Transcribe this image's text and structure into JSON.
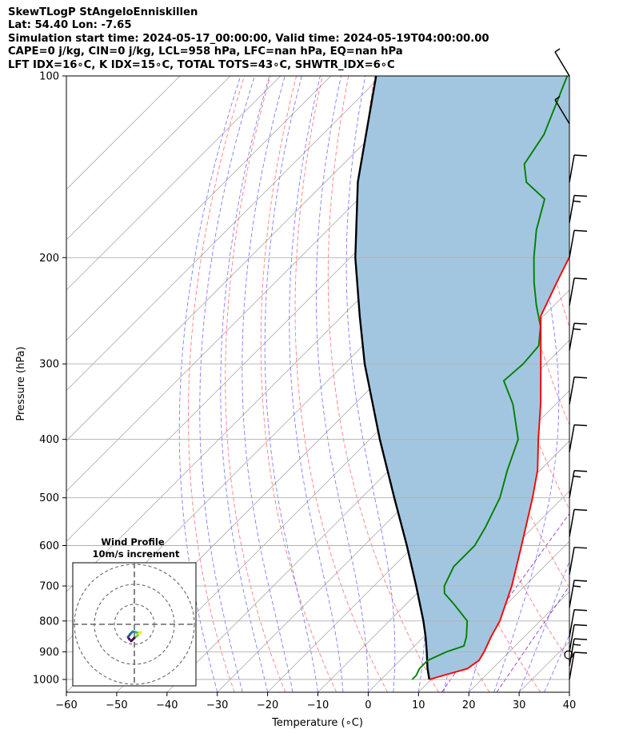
{
  "header": {
    "line1": "SkewTLogP StAngeloEnniskillen",
    "line2": "Lat: 54.40   Lon: -7.65",
    "line3": "Simulation start time: 2024-05-17_00:00:00, Valid time: 2024-05-19T04:00:00.00",
    "line4": "CAPE=0 j/kg, CIN=0 j/kg, LCL=958 hPa, LFC=nan hPa, EQ=nan hPa",
    "line5": "LFT IDX=16∘C, K IDX=15∘C, TOTAL TOTS=43∘C, SHWTR_IDX=6∘C"
  },
  "colors": {
    "temperature": "#ff0000",
    "dewpoint": "#008000",
    "parcel": "#000000",
    "cape_fill": "#a2c6e0",
    "dry_adiabat": "#ff6666",
    "moist_adiabat": "#6666ff",
    "mixing_ratio": "#9933cc",
    "isotherm": "#aaaaaa"
  },
  "chart_data": {
    "type": "line",
    "xlabel": "Temperature (∘C)",
    "ylabel": "Pressure (hPa)",
    "xlim": [
      -60,
      40
    ],
    "ylim": [
      1050,
      100
    ],
    "y_scale": "log",
    "x_ticks": [
      -60,
      -50,
      -40,
      -30,
      -20,
      -10,
      0,
      10,
      20,
      30,
      40
    ],
    "y_ticks": [
      1000,
      900,
      800,
      700,
      600,
      500,
      400,
      300,
      200,
      100
    ],
    "grid": true,
    "series": [
      {
        "key": "temperature",
        "pressure": [
          1000,
          985,
          960,
          930,
          900,
          850,
          800,
          700,
          600,
          500,
          450,
          400,
          350,
          300,
          250,
          220,
          200,
          180,
          160,
          145,
          130,
          115,
          100
        ],
        "temp": [
          9.6,
          11.6,
          15.0,
          15.7,
          15.0,
          13.4,
          12.0,
          7.4,
          1.3,
          -6.0,
          -10.5,
          -16.5,
          -23.0,
          -31.0,
          -40.5,
          -44.0,
          -46.5,
          -48.0,
          -50.5,
          -53.0,
          -55.5,
          -58.0,
          -61.0
        ]
      },
      {
        "key": "dewpoint",
        "pressure": [
          1000,
          985,
          960,
          930,
          900,
          880,
          850,
          800,
          750,
          720,
          700,
          650,
          600,
          560,
          500,
          450,
          400,
          350,
          320,
          300,
          280,
          260,
          240,
          220,
          200,
          180,
          160,
          150,
          140,
          125,
          100
        ],
        "dewpoint": [
          6.2,
          6.2,
          5.5,
          5.5,
          7.5,
          9.8,
          8.5,
          5.5,
          -0.5,
          -4.5,
          -6.0,
          -8.0,
          -8.0,
          -9.5,
          -12.5,
          -16.5,
          -20.5,
          -28.5,
          -35.0,
          -34.5,
          -35.0,
          -38.5,
          -43.5,
          -48.5,
          -53.5,
          -58.5,
          -63.0,
          -70.0,
          -74.0,
          -76.0,
          -83.0
        ]
      },
      {
        "key": "parcel",
        "pressure": [
          1000,
          958,
          900,
          850,
          800,
          700,
          600,
          500,
          400,
          300,
          250,
          200,
          150,
          100
        ],
        "temp": [
          9.6,
          7.0,
          3.6,
          0.4,
          -3.2,
          -11.6,
          -21.5,
          -33.5,
          -48.0,
          -66.0,
          -76.5,
          -89.0,
          -103.5,
          -121.0
        ]
      }
    ],
    "wind_profile_inset": {
      "title_line1": "Wind Profile",
      "title_line2": "10m/s increment"
    }
  }
}
